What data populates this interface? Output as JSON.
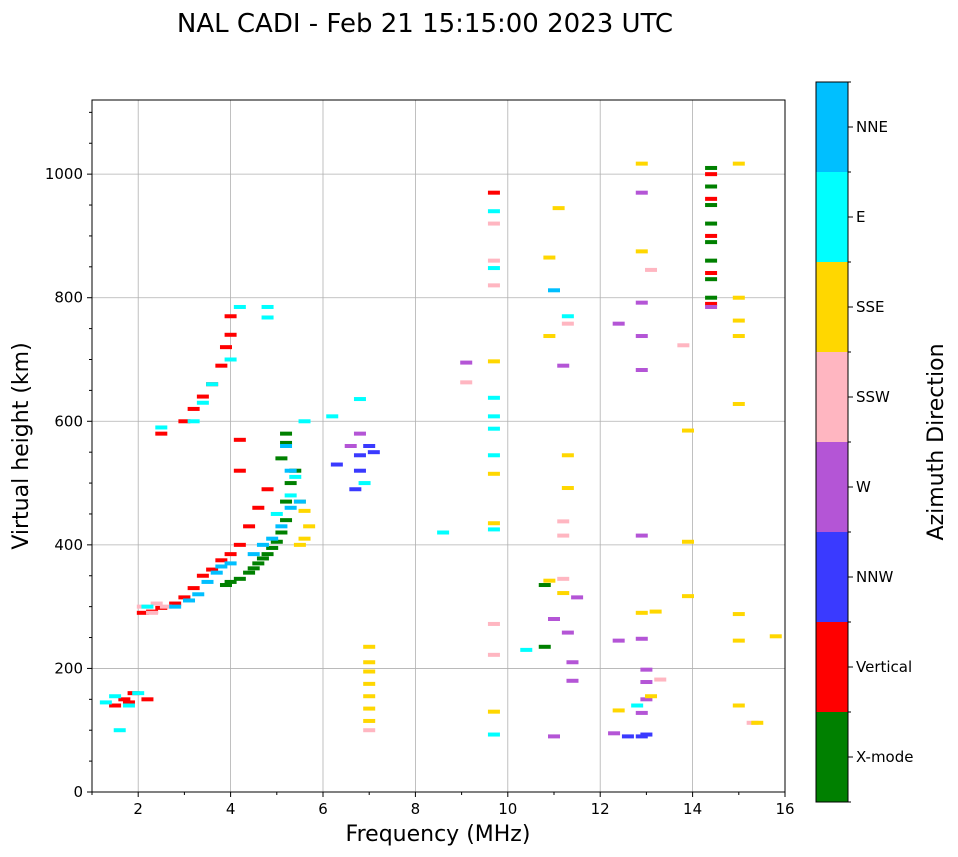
{
  "chart_data": {
    "type": "scatter",
    "title": "NAL CADI - Feb 21 15:15:00 2023 UTC",
    "xlabel": "Frequency (MHz)",
    "ylabel": "Virtual height (km)",
    "xlim": [
      1,
      16
    ],
    "ylim": [
      0,
      1120
    ],
    "xticks": [
      2,
      4,
      6,
      8,
      10,
      12,
      14,
      16
    ],
    "yticks": [
      0,
      200,
      400,
      600,
      800,
      1000
    ],
    "grid": true,
    "colorbar": {
      "label": "Azimuth Direction",
      "categories": [
        "X-mode",
        "Vertical",
        "NNW",
        "W",
        "SSW",
        "SSE",
        "E",
        "NNE"
      ],
      "colors": [
        "#008000",
        "#ff0000",
        "#3a3aff",
        "#b455d6",
        "#ffb6c1",
        "#ffd700",
        "#00ffff",
        "#00bfff"
      ]
    },
    "series": [
      {
        "name": "X-mode",
        "points": [
          [
            3.9,
            335
          ],
          [
            4.0,
            340
          ],
          [
            4.2,
            345
          ],
          [
            4.4,
            355
          ],
          [
            4.5,
            362
          ],
          [
            4.6,
            370
          ],
          [
            4.7,
            378
          ],
          [
            4.8,
            385
          ],
          [
            4.9,
            395
          ],
          [
            5.0,
            405
          ],
          [
            5.1,
            420
          ],
          [
            5.2,
            440
          ],
          [
            5.2,
            470
          ],
          [
            5.3,
            500
          ],
          [
            5.4,
            520
          ],
          [
            5.1,
            540
          ],
          [
            5.2,
            565
          ],
          [
            5.2,
            580
          ],
          [
            10.8,
            335
          ],
          [
            10.8,
            235
          ],
          [
            14.4,
            800
          ],
          [
            14.4,
            830
          ],
          [
            14.4,
            860
          ],
          [
            14.4,
            890
          ],
          [
            14.4,
            920
          ],
          [
            14.4,
            950
          ],
          [
            14.4,
            980
          ],
          [
            14.4,
            1010
          ]
        ]
      },
      {
        "name": "Vertical",
        "points": [
          [
            1.5,
            140
          ],
          [
            1.7,
            150
          ],
          [
            1.8,
            145
          ],
          [
            1.9,
            160
          ],
          [
            2.2,
            150
          ],
          [
            2.1,
            290
          ],
          [
            2.3,
            292
          ],
          [
            2.5,
            298
          ],
          [
            2.8,
            305
          ],
          [
            3.0,
            315
          ],
          [
            3.2,
            330
          ],
          [
            3.4,
            350
          ],
          [
            3.6,
            360
          ],
          [
            3.8,
            375
          ],
          [
            4.0,
            385
          ],
          [
            4.2,
            400
          ],
          [
            4.4,
            430
          ],
          [
            4.6,
            460
          ],
          [
            4.8,
            490
          ],
          [
            4.2,
            520
          ],
          [
            4.2,
            570
          ],
          [
            3.0,
            600
          ],
          [
            3.2,
            620
          ],
          [
            3.4,
            640
          ],
          [
            3.6,
            660
          ],
          [
            3.8,
            690
          ],
          [
            3.9,
            720
          ],
          [
            4.0,
            740
          ],
          [
            4.0,
            770
          ],
          [
            2.5,
            580
          ],
          [
            9.7,
            970
          ],
          [
            14.4,
            790
          ],
          [
            14.4,
            840
          ],
          [
            14.4,
            900
          ],
          [
            14.4,
            960
          ],
          [
            14.4,
            1000
          ]
        ]
      },
      {
        "name": "NNW",
        "points": [
          [
            6.3,
            530
          ],
          [
            6.7,
            490
          ],
          [
            6.8,
            520
          ],
          [
            6.8,
            545
          ],
          [
            7.1,
            550
          ],
          [
            7.0,
            560
          ],
          [
            12.9,
            90
          ],
          [
            12.6,
            90
          ],
          [
            13.0,
            93
          ]
        ]
      },
      {
        "name": "W",
        "points": [
          [
            6.6,
            560
          ],
          [
            6.8,
            580
          ],
          [
            9.1,
            695
          ],
          [
            11.2,
            690
          ],
          [
            11.5,
            315
          ],
          [
            11.0,
            280
          ],
          [
            11.3,
            258
          ],
          [
            11.4,
            210
          ],
          [
            11.4,
            180
          ],
          [
            11.0,
            90
          ],
          [
            12.4,
            758
          ],
          [
            12.4,
            245
          ],
          [
            12.3,
            95
          ],
          [
            12.9,
            970
          ],
          [
            12.9,
            792
          ],
          [
            12.9,
            738
          ],
          [
            12.9,
            683
          ],
          [
            12.9,
            415
          ],
          [
            12.9,
            248
          ],
          [
            13.0,
            198
          ],
          [
            13.0,
            178
          ],
          [
            13.0,
            150
          ],
          [
            12.9,
            128
          ],
          [
            14.4,
            785
          ]
        ]
      },
      {
        "name": "SSW",
        "points": [
          [
            2.1,
            300
          ],
          [
            2.4,
            305
          ],
          [
            2.6,
            300
          ],
          [
            2.3,
            290
          ],
          [
            9.1,
            663
          ],
          [
            9.7,
            860
          ],
          [
            9.7,
            920
          ],
          [
            9.7,
            820
          ],
          [
            9.7,
            272
          ],
          [
            9.7,
            222
          ],
          [
            11.2,
            345
          ],
          [
            11.2,
            438
          ],
          [
            11.2,
            415
          ],
          [
            11.3,
            758
          ],
          [
            13.1,
            845
          ],
          [
            13.3,
            182
          ],
          [
            13.8,
            723
          ],
          [
            7.0,
            100
          ],
          [
            15.3,
            112
          ]
        ]
      },
      {
        "name": "SSE",
        "points": [
          [
            5.5,
            400
          ],
          [
            5.6,
            410
          ],
          [
            5.7,
            430
          ],
          [
            5.6,
            455
          ],
          [
            5.5,
            470
          ],
          [
            7.0,
            235
          ],
          [
            7.0,
            210
          ],
          [
            7.0,
            195
          ],
          [
            7.0,
            175
          ],
          [
            7.0,
            155
          ],
          [
            7.0,
            135
          ],
          [
            7.0,
            115
          ],
          [
            9.7,
            697
          ],
          [
            9.7,
            515
          ],
          [
            9.7,
            435
          ],
          [
            9.7,
            130
          ],
          [
            10.9,
            865
          ],
          [
            10.9,
            738
          ],
          [
            10.9,
            342
          ],
          [
            11.1,
            945
          ],
          [
            11.2,
            322
          ],
          [
            11.3,
            545
          ],
          [
            11.3,
            492
          ],
          [
            12.4,
            132
          ],
          [
            12.9,
            1017
          ],
          [
            12.9,
            875
          ],
          [
            12.9,
            290
          ],
          [
            13.2,
            292
          ],
          [
            13.1,
            155
          ],
          [
            13.9,
            585
          ],
          [
            13.9,
            405
          ],
          [
            13.9,
            317
          ],
          [
            15.0,
            1017
          ],
          [
            15.0,
            800
          ],
          [
            15.0,
            763
          ],
          [
            15.0,
            738
          ],
          [
            15.0,
            628
          ],
          [
            15.0,
            288
          ],
          [
            15.0,
            245
          ],
          [
            15.0,
            140
          ],
          [
            15.4,
            112
          ],
          [
            15.8,
            252
          ]
        ]
      },
      {
        "name": "E",
        "points": [
          [
            1.3,
            145
          ],
          [
            1.5,
            155
          ],
          [
            1.6,
            100
          ],
          [
            1.8,
            140
          ],
          [
            2.0,
            160
          ],
          [
            2.2,
            300
          ],
          [
            2.5,
            590
          ],
          [
            3.2,
            600
          ],
          [
            3.4,
            630
          ],
          [
            3.6,
            660
          ],
          [
            4.0,
            700
          ],
          [
            4.2,
            785
          ],
          [
            4.8,
            785
          ],
          [
            4.8,
            768
          ],
          [
            5.0,
            450
          ],
          [
            5.3,
            480
          ],
          [
            5.4,
            510
          ],
          [
            5.6,
            600
          ],
          [
            6.2,
            608
          ],
          [
            6.8,
            636
          ],
          [
            6.9,
            500
          ],
          [
            8.6,
            420
          ],
          [
            9.7,
            940
          ],
          [
            9.7,
            848
          ],
          [
            9.7,
            638
          ],
          [
            9.7,
            608
          ],
          [
            9.7,
            588
          ],
          [
            9.7,
            545
          ],
          [
            9.7,
            425
          ],
          [
            9.7,
            93
          ],
          [
            10.4,
            230
          ],
          [
            11.3,
            770
          ],
          [
            12.8,
            140
          ]
        ]
      },
      {
        "name": "NNE",
        "points": [
          [
            2.8,
            300
          ],
          [
            3.1,
            310
          ],
          [
            3.3,
            320
          ],
          [
            3.5,
            340
          ],
          [
            3.7,
            355
          ],
          [
            3.8,
            365
          ],
          [
            4.0,
            370
          ],
          [
            4.5,
            385
          ],
          [
            4.7,
            400
          ],
          [
            4.9,
            410
          ],
          [
            5.1,
            430
          ],
          [
            5.3,
            460
          ],
          [
            5.5,
            470
          ],
          [
            5.3,
            520
          ],
          [
            5.2,
            560
          ],
          [
            11.0,
            812
          ]
        ]
      }
    ]
  }
}
